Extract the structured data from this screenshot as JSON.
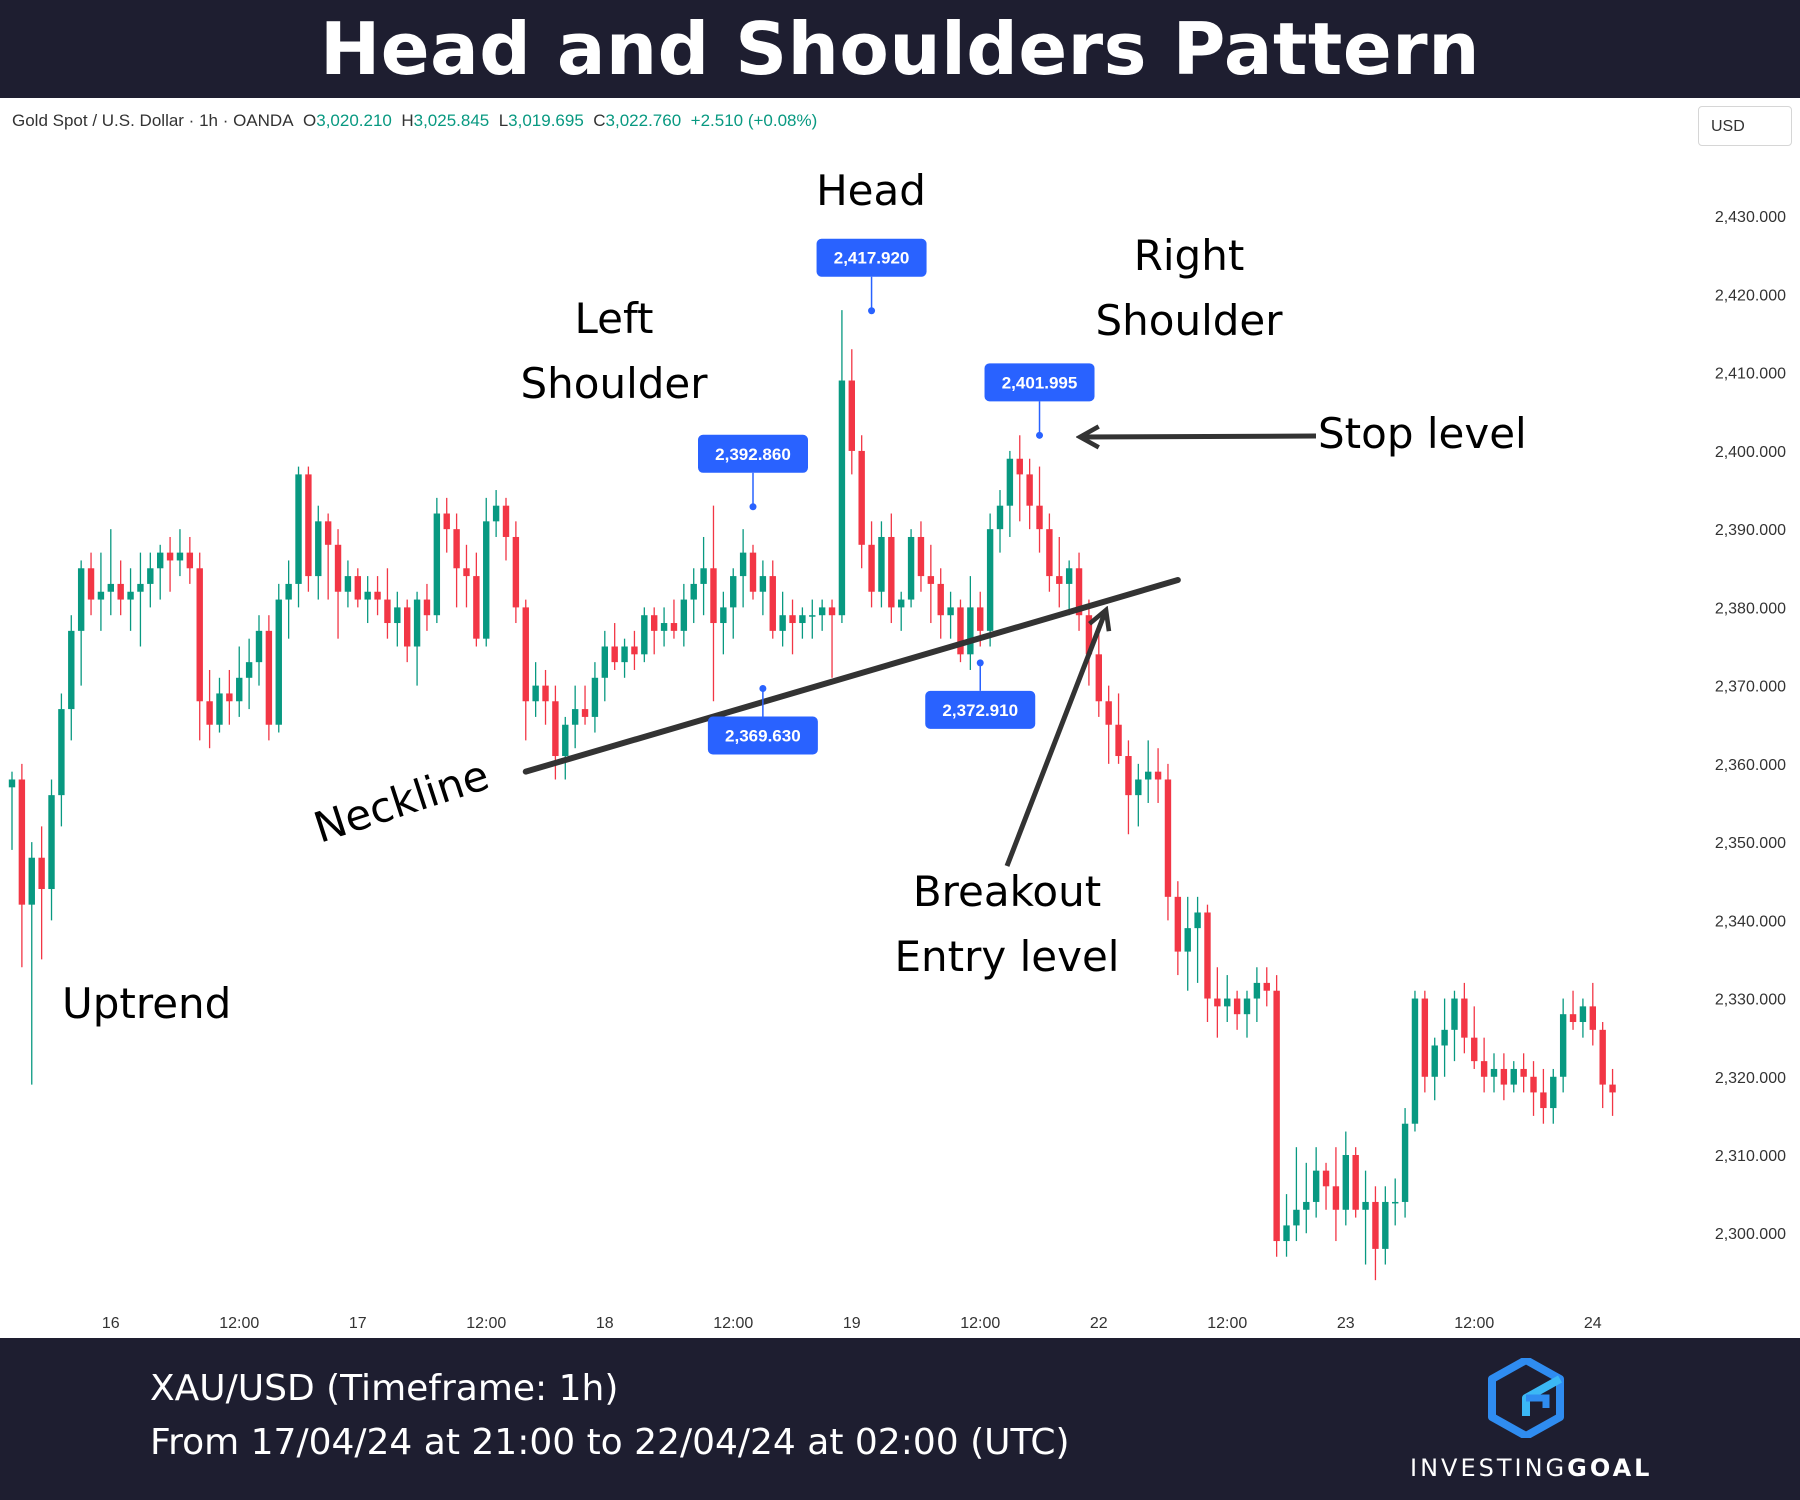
{
  "title": "Head and Shoulders Pattern",
  "ohlc": {
    "symbol": "Gold Spot / U.S. Dollar · 1h · OANDA",
    "o_label": "O",
    "o": "3,020.210",
    "h_label": "H",
    "h": "3,025.845",
    "l_label": "L",
    "l": "3,019.695",
    "c_label": "C",
    "c": "3,022.760",
    "change": "+2.510 (+0.08%)"
  },
  "currency": "USD",
  "footer": {
    "line1": "XAU/USD (Timeframe: 1h)",
    "line2": "From 17/04/24 at 21:00 to 22/04/24 at 02:00 (UTC)",
    "brand_light": "INVESTING",
    "brand_bold": "GOAL"
  },
  "colors": {
    "up": "#089981",
    "down": "#f23645",
    "price_label_bg": "#2962ff",
    "neckline": "#333333",
    "frame": "#1e1e30"
  },
  "chart_data": {
    "type": "candlestick",
    "timeframe": "1h",
    "ylim": [
      2293,
      2440
    ],
    "y_ticks": [
      "2,430.000",
      "2,420.000",
      "2,410.000",
      "2,400.000",
      "2,390.000",
      "2,380.000",
      "2,370.000",
      "2,360.000",
      "2,350.000",
      "2,340.000",
      "2,330.000",
      "2,320.000",
      "2,310.000",
      "2,300.000"
    ],
    "x_ticks": [
      {
        "label": "16",
        "index": 10
      },
      {
        "label": "12:00",
        "index": 23
      },
      {
        "label": "17",
        "index": 35
      },
      {
        "label": "12:00",
        "index": 48
      },
      {
        "label": "18",
        "index": 60
      },
      {
        "label": "12:00",
        "index": 73
      },
      {
        "label": "19",
        "index": 85
      },
      {
        "label": "12:00",
        "index": 98
      },
      {
        "label": "22",
        "index": 110
      },
      {
        "label": "12:00",
        "index": 123
      },
      {
        "label": "23",
        "index": 135
      },
      {
        "label": "12:00",
        "index": 148
      },
      {
        "label": "24",
        "index": 160
      }
    ],
    "candles": [
      [
        2357,
        2359,
        2349,
        2358
      ],
      [
        2358,
        2360,
        2334,
        2342
      ],
      [
        2342,
        2350,
        2319,
        2348
      ],
      [
        2348,
        2352,
        2335,
        2344
      ],
      [
        2344,
        2358,
        2340,
        2356
      ],
      [
        2356,
        2369,
        2352,
        2367
      ],
      [
        2367,
        2379,
        2363,
        2377
      ],
      [
        2377,
        2386,
        2370,
        2385
      ],
      [
        2385,
        2387,
        2379,
        2381
      ],
      [
        2381,
        2387,
        2377,
        2382
      ],
      [
        2382,
        2390,
        2379,
        2383
      ],
      [
        2383,
        2386,
        2379,
        2381
      ],
      [
        2381,
        2385,
        2377,
        2382
      ],
      [
        2382,
        2387,
        2375,
        2383
      ],
      [
        2383,
        2387,
        2380,
        2385
      ],
      [
        2385,
        2388,
        2381,
        2387
      ],
      [
        2387,
        2389,
        2382,
        2386
      ],
      [
        2386,
        2390,
        2384,
        2387
      ],
      [
        2387,
        2389,
        2383,
        2385
      ],
      [
        2385,
        2387,
        2363,
        2368
      ],
      [
        2368,
        2372,
        2362,
        2365
      ],
      [
        2365,
        2371,
        2364,
        2369
      ],
      [
        2369,
        2372,
        2365,
        2368
      ],
      [
        2368,
        2375,
        2366,
        2371
      ],
      [
        2371,
        2376,
        2367,
        2373
      ],
      [
        2373,
        2379,
        2370,
        2377
      ],
      [
        2377,
        2379,
        2363,
        2365
      ],
      [
        2365,
        2383,
        2364,
        2381
      ],
      [
        2381,
        2386,
        2376,
        2383
      ],
      [
        2383,
        2398,
        2380,
        2397
      ],
      [
        2397,
        2398,
        2382,
        2384
      ],
      [
        2384,
        2393,
        2381,
        2391
      ],
      [
        2391,
        2392,
        2381,
        2388
      ],
      [
        2388,
        2390,
        2376,
        2382
      ],
      [
        2382,
        2386,
        2380,
        2384
      ],
      [
        2384,
        2385,
        2380,
        2381
      ],
      [
        2381,
        2384,
        2378,
        2382
      ],
      [
        2382,
        2384,
        2379,
        2381
      ],
      [
        2381,
        2385,
        2376,
        2378
      ],
      [
        2378,
        2382,
        2375,
        2380
      ],
      [
        2380,
        2381,
        2373,
        2375
      ],
      [
        2375,
        2382,
        2370,
        2381
      ],
      [
        2381,
        2383,
        2377,
        2379
      ],
      [
        2379,
        2394,
        2378,
        2392
      ],
      [
        2392,
        2394,
        2387,
        2390
      ],
      [
        2390,
        2392,
        2380,
        2385
      ],
      [
        2385,
        2388,
        2380,
        2384
      ],
      [
        2384,
        2387,
        2375,
        2376
      ],
      [
        2376,
        2394,
        2375,
        2391
      ],
      [
        2391,
        2395,
        2389,
        2393
      ],
      [
        2393,
        2394,
        2386,
        2389
      ],
      [
        2389,
        2391,
        2378,
        2380
      ],
      [
        2380,
        2381,
        2363,
        2368
      ],
      [
        2368,
        2373,
        2366,
        2370
      ],
      [
        2370,
        2372,
        2365,
        2368
      ],
      [
        2368,
        2370,
        2358,
        2361
      ],
      [
        2361,
        2366,
        2358,
        2365
      ],
      [
        2365,
        2370,
        2362,
        2367
      ],
      [
        2367,
        2370,
        2365,
        2366
      ],
      [
        2366,
        2373,
        2364,
        2371
      ],
      [
        2371,
        2377,
        2368,
        2375
      ],
      [
        2375,
        2378,
        2372,
        2373
      ],
      [
        2373,
        2376,
        2371,
        2375
      ],
      [
        2375,
        2377,
        2372,
        2374
      ],
      [
        2374,
        2380,
        2373,
        2379
      ],
      [
        2379,
        2380,
        2374,
        2377
      ],
      [
        2377,
        2380,
        2375,
        2378
      ],
      [
        2378,
        2381,
        2376,
        2377
      ],
      [
        2377,
        2383,
        2375,
        2381
      ],
      [
        2381,
        2385,
        2378,
        2383
      ],
      [
        2383,
        2389,
        2379,
        2385
      ],
      [
        2385,
        2393,
        2368,
        2378
      ],
      [
        2378,
        2382,
        2374,
        2380
      ],
      [
        2380,
        2385,
        2376,
        2384
      ],
      [
        2384,
        2390,
        2380,
        2387
      ],
      [
        2387,
        2388,
        2381,
        2382
      ],
      [
        2382,
        2386,
        2379,
        2384
      ],
      [
        2384,
        2386,
        2376,
        2377
      ],
      [
        2377,
        2382,
        2375,
        2379
      ],
      [
        2379,
        2381,
        2374,
        2378
      ],
      [
        2378,
        2380,
        2376,
        2379
      ],
      [
        2379,
        2381,
        2376,
        2379
      ],
      [
        2379,
        2381,
        2377,
        2380
      ],
      [
        2380,
        2381,
        2371,
        2379
      ],
      [
        2379,
        2418,
        2378,
        2409
      ],
      [
        2409,
        2413,
        2397,
        2400
      ],
      [
        2400,
        2402,
        2385,
        2388
      ],
      [
        2388,
        2391,
        2380,
        2382
      ],
      [
        2382,
        2391,
        2380,
        2389
      ],
      [
        2389,
        2392,
        2378,
        2380
      ],
      [
        2380,
        2382,
        2377,
        2381
      ],
      [
        2381,
        2390,
        2380,
        2389
      ],
      [
        2389,
        2391,
        2382,
        2384
      ],
      [
        2384,
        2388,
        2378,
        2383
      ],
      [
        2383,
        2385,
        2376,
        2379
      ],
      [
        2379,
        2382,
        2376,
        2380
      ],
      [
        2380,
        2381,
        2373,
        2374
      ],
      [
        2374,
        2384,
        2372,
        2380
      ],
      [
        2380,
        2382,
        2375,
        2377
      ],
      [
        2377,
        2392,
        2375,
        2390
      ],
      [
        2390,
        2395,
        2387,
        2393
      ],
      [
        2393,
        2400,
        2389,
        2399
      ],
      [
        2399,
        2402,
        2391,
        2397
      ],
      [
        2397,
        2399,
        2390,
        2393
      ],
      [
        2393,
        2398,
        2387,
        2390
      ],
      [
        2390,
        2392,
        2382,
        2384
      ],
      [
        2384,
        2389,
        2380,
        2383
      ],
      [
        2383,
        2386,
        2379,
        2385
      ],
      [
        2385,
        2387,
        2377,
        2379
      ],
      [
        2379,
        2381,
        2370,
        2374
      ],
      [
        2374,
        2377,
        2366,
        2368
      ],
      [
        2368,
        2370,
        2360,
        2365
      ],
      [
        2365,
        2369,
        2360,
        2361
      ],
      [
        2361,
        2363,
        2351,
        2356
      ],
      [
        2356,
        2360,
        2352,
        2358
      ],
      [
        2358,
        2363,
        2355,
        2359
      ],
      [
        2359,
        2362,
        2355,
        2358
      ],
      [
        2358,
        2360,
        2340,
        2343
      ],
      [
        2343,
        2345,
        2333,
        2336
      ],
      [
        2336,
        2343,
        2331,
        2339
      ],
      [
        2339,
        2343,
        2332,
        2341
      ],
      [
        2341,
        2342,
        2327,
        2330
      ],
      [
        2330,
        2334,
        2325,
        2329
      ],
      [
        2329,
        2333,
        2327,
        2330
      ],
      [
        2330,
        2331,
        2326,
        2328
      ],
      [
        2328,
        2331,
        2325,
        2330
      ],
      [
        2330,
        2334,
        2327,
        2332
      ],
      [
        2332,
        2334,
        2329,
        2331
      ],
      [
        2331,
        2333,
        2297,
        2299
      ],
      [
        2299,
        2305,
        2297,
        2301
      ],
      [
        2301,
        2311,
        2299,
        2303
      ],
      [
        2303,
        2309,
        2300,
        2304
      ],
      [
        2304,
        2311,
        2302,
        2308
      ],
      [
        2308,
        2309,
        2303,
        2306
      ],
      [
        2306,
        2311,
        2299,
        2303
      ],
      [
        2303,
        2313,
        2301,
        2310
      ],
      [
        2310,
        2311,
        2302,
        2303
      ],
      [
        2303,
        2308,
        2296,
        2304
      ],
      [
        2304,
        2306,
        2294,
        2298
      ],
      [
        2298,
        2306,
        2296,
        2304
      ],
      [
        2304,
        2307,
        2301,
        2304
      ],
      [
        2304,
        2316,
        2302,
        2314
      ],
      [
        2314,
        2331,
        2313,
        2330
      ],
      [
        2330,
        2331,
        2318,
        2320
      ],
      [
        2320,
        2325,
        2317,
        2324
      ],
      [
        2324,
        2330,
        2320,
        2326
      ],
      [
        2326,
        2331,
        2322,
        2330
      ],
      [
        2330,
        2332,
        2323,
        2325
      ],
      [
        2325,
        2329,
        2321,
        2322
      ],
      [
        2322,
        2325,
        2318,
        2320
      ],
      [
        2320,
        2323,
        2318,
        2321
      ],
      [
        2321,
        2323,
        2317,
        2319
      ],
      [
        2319,
        2322,
        2318,
        2321
      ],
      [
        2321,
        2323,
        2318,
        2320
      ],
      [
        2320,
        2322,
        2315,
        2318
      ],
      [
        2318,
        2321,
        2314,
        2316
      ],
      [
        2316,
        2321,
        2314,
        2320
      ],
      [
        2320,
        2330,
        2318,
        2328
      ],
      [
        2328,
        2331,
        2326,
        2327
      ],
      [
        2327,
        2330,
        2325,
        2329
      ],
      [
        2329,
        2332,
        2324,
        2326
      ],
      [
        2326,
        2327,
        2316,
        2319
      ],
      [
        2319,
        2321,
        2315,
        2318
      ]
    ],
    "price_labels": [
      {
        "label": "2,392.860",
        "value": 2392.86,
        "index": 75,
        "position": "above"
      },
      {
        "label": "2,369.630",
        "value": 2369.63,
        "index": 76,
        "position": "below"
      },
      {
        "label": "2,417.920",
        "value": 2417.92,
        "index": 87,
        "position": "above"
      },
      {
        "label": "2,372.910",
        "value": 2372.91,
        "index": 98,
        "position": "below"
      },
      {
        "label": "2,401.995",
        "value": 2401.995,
        "index": 104,
        "position": "above"
      }
    ],
    "neckline": {
      "start": {
        "index": 52,
        "value": 2359
      },
      "end": {
        "index": 118,
        "value": 2383.5
      }
    },
    "annotations": {
      "uptrend": "Uptrend",
      "neckline": "Neckline",
      "left_shoulder": [
        "Left",
        "Shoulder"
      ],
      "head": "Head",
      "right_shoulder": [
        "Right",
        "Shoulder"
      ],
      "stop_level": "Stop level",
      "breakout": [
        "Breakout",
        "Entry level"
      ]
    }
  }
}
